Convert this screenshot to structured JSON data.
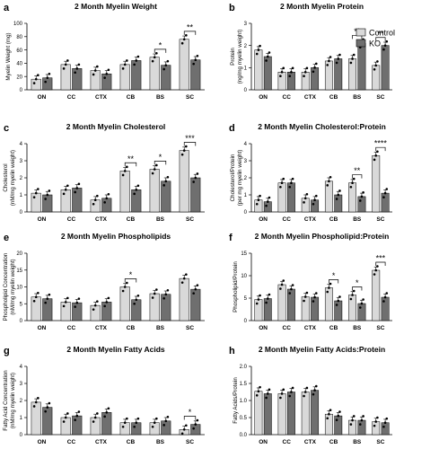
{
  "legend": {
    "entries": [
      "Control",
      "KO"
    ]
  },
  "colors": {
    "control": "#d9d9d9",
    "ko": "#6f6f6f",
    "axis": "#000000",
    "point": "#000000"
  },
  "chart_data": [
    {
      "panel_letter": "a",
      "type": "bar",
      "title": "2 Month Myelin Weight",
      "ylabel": "Myelin Weight (mg)",
      "categories": [
        "ON",
        "CC",
        "CTX",
        "CB",
        "BS",
        "SC"
      ],
      "ylim": [
        0,
        100
      ],
      "yticks": [
        "0",
        "20",
        "40",
        "60",
        "80",
        "100"
      ],
      "series": [
        {
          "name": "Control",
          "values": [
            16,
            38,
            29,
            38,
            49,
            76
          ]
        },
        {
          "name": "KO",
          "values": [
            18,
            32,
            24,
            44,
            37,
            45
          ]
        }
      ],
      "significance": [
        {
          "category": "BS",
          "label": "*"
        },
        {
          "category": "SC",
          "label": "**"
        }
      ]
    },
    {
      "panel_letter": "b",
      "type": "bar",
      "title": "2 Month Myelin Protein",
      "ylabel": "Protein\n(ng/mg myelin weight)",
      "categories": [
        "ON",
        "CC",
        "CTX",
        "CB",
        "BS",
        "SC"
      ],
      "ylim": [
        0,
        3
      ],
      "yticks": [
        "0",
        "1",
        "2",
        "3"
      ],
      "series": [
        {
          "name": "Control",
          "values": [
            1.8,
            0.8,
            0.8,
            1.3,
            1.4,
            1.1
          ]
        },
        {
          "name": "KO",
          "values": [
            1.5,
            0.8,
            1.0,
            1.4,
            2.1,
            2.0
          ]
        }
      ],
      "significance": [
        {
          "category": "BS",
          "label": "**"
        },
        {
          "category": "SC",
          "label": "**"
        }
      ]
    },
    {
      "panel_letter": "c",
      "type": "bar",
      "title": "2 Month Myelin Cholesterol",
      "ylabel": "Cholesterol\n(nM/mg myelin weight)",
      "categories": [
        "ON",
        "CC",
        "CTX",
        "CB",
        "BS",
        "SC"
      ],
      "ylim": [
        0,
        4
      ],
      "yticks": [
        "0",
        "1",
        "2",
        "3",
        "4"
      ],
      "series": [
        {
          "name": "Control",
          "values": [
            1.1,
            1.3,
            0.7,
            2.4,
            2.5,
            3.6
          ]
        },
        {
          "name": "KO",
          "values": [
            1.0,
            1.4,
            0.8,
            1.3,
            1.8,
            2.0
          ]
        }
      ],
      "significance": [
        {
          "category": "CB",
          "label": "**"
        },
        {
          "category": "BS",
          "label": "*"
        },
        {
          "category": "SC",
          "label": "***"
        }
      ]
    },
    {
      "panel_letter": "d",
      "type": "bar",
      "title": "2 Month Myelin Cholesterol:Protein",
      "ylabel": "Cholesterol/Protein\n(per mg myelin weight)",
      "categories": [
        "ON",
        "CC",
        "CTX",
        "CB",
        "BS",
        "SC"
      ],
      "ylim": [
        0,
        4
      ],
      "yticks": [
        "0",
        "1",
        "2",
        "3",
        "4"
      ],
      "series": [
        {
          "name": "Control",
          "values": [
            0.7,
            1.7,
            0.8,
            1.8,
            1.7,
            3.3
          ]
        },
        {
          "name": "KO",
          "values": [
            0.6,
            1.7,
            0.7,
            1.0,
            0.9,
            1.1
          ]
        }
      ],
      "significance": [
        {
          "category": "BS",
          "label": "**"
        },
        {
          "category": "SC",
          "label": "****"
        }
      ]
    },
    {
      "panel_letter": "e",
      "type": "bar",
      "title": "2 Month Myelin Phospholipids",
      "ylabel": "Phospholipid Concentration\n(nM/mg myelin weight)",
      "categories": [
        "ON",
        "CC",
        "CTX",
        "CB",
        "BS",
        "SC"
      ],
      "ylim": [
        0,
        20
      ],
      "yticks": [
        "0",
        "5",
        "10",
        "15",
        "20"
      ],
      "series": [
        {
          "name": "Control",
          "values": [
            7,
            5.5,
            4.5,
            10,
            8,
            12.5
          ]
        },
        {
          "name": "KO",
          "values": [
            6.5,
            5.3,
            5.5,
            6.2,
            7.8,
            9.3
          ]
        }
      ],
      "significance": [
        {
          "category": "CB",
          "label": "*"
        }
      ]
    },
    {
      "panel_letter": "f",
      "type": "bar",
      "title": "2 Month Myelin Phospholipid:Protein",
      "ylabel": "Phospholipid/Protein",
      "categories": [
        "ON",
        "CC",
        "CTX",
        "CB",
        "BS",
        "SC"
      ],
      "ylim": [
        0,
        15
      ],
      "yticks": [
        "0",
        "5",
        "10",
        "15"
      ],
      "series": [
        {
          "name": "Control",
          "values": [
            4.7,
            8,
            5.3,
            7.3,
            5.7,
            11.2
          ]
        },
        {
          "name": "KO",
          "values": [
            4.9,
            7,
            5.2,
            4.4,
            3.8,
            5.2
          ]
        }
      ],
      "significance": [
        {
          "category": "CB",
          "label": "*"
        },
        {
          "category": "BS",
          "label": "*"
        },
        {
          "category": "SC",
          "label": "***"
        }
      ]
    },
    {
      "panel_letter": "g",
      "type": "bar",
      "title": "2 Month Myelin Fatty Acids",
      "ylabel": "Fatty Acid Concentration\n(nM/mg myelin weight)",
      "categories": [
        "ON",
        "CC",
        "CTX",
        "CB",
        "BS",
        "SC"
      ],
      "ylim": [
        0,
        4
      ],
      "yticks": [
        "0",
        "1",
        "2",
        "3",
        "4"
      ],
      "series": [
        {
          "name": "Control",
          "values": [
            1.9,
            1.0,
            1.0,
            0.7,
            0.7,
            0.3
          ]
        },
        {
          "name": "KO",
          "values": [
            1.6,
            1.1,
            1.3,
            0.7,
            0.8,
            0.6
          ]
        }
      ],
      "significance": [
        {
          "category": "SC",
          "label": "*"
        }
      ]
    },
    {
      "panel_letter": "h",
      "type": "bar",
      "title": "2 Month Myelin Fatty Acids:Protein",
      "ylabel": "Fatty Acids/Protein",
      "categories": [
        "ON",
        "CC",
        "CTX",
        "CB",
        "BS",
        "SC"
      ],
      "ylim": [
        0,
        2
      ],
      "yticks": [
        "0.0",
        "0.5",
        "1.0",
        "1.5",
        "2.0"
      ],
      "series": [
        {
          "name": "Control",
          "values": [
            1.27,
            1.2,
            1.25,
            0.6,
            0.42,
            0.38
          ]
        },
        {
          "name": "KO",
          "values": [
            1.2,
            1.25,
            1.3,
            0.55,
            0.42,
            0.35
          ]
        }
      ],
      "significance": []
    }
  ]
}
